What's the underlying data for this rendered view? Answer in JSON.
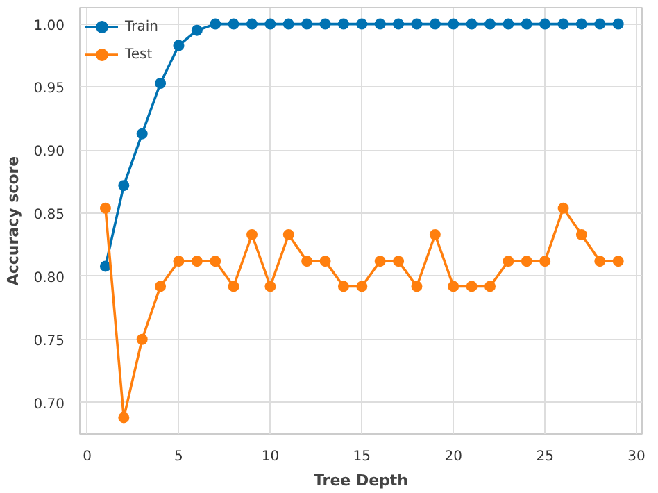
{
  "chart_data": {
    "type": "line",
    "xlabel": "Tree Depth",
    "ylabel": "Accuracy score",
    "x": [
      1,
      2,
      3,
      4,
      5,
      6,
      7,
      8,
      9,
      10,
      11,
      12,
      13,
      14,
      15,
      16,
      17,
      18,
      19,
      20,
      21,
      22,
      23,
      24,
      25,
      26,
      27,
      28,
      29
    ],
    "series": [
      {
        "name": "Train",
        "color": "#0072b2",
        "values": [
          0.808,
          0.872,
          0.913,
          0.953,
          0.983,
          0.995,
          1.0,
          1.0,
          1.0,
          1.0,
          1.0,
          1.0,
          1.0,
          1.0,
          1.0,
          1.0,
          1.0,
          1.0,
          1.0,
          1.0,
          1.0,
          1.0,
          1.0,
          1.0,
          1.0,
          1.0,
          1.0,
          1.0,
          1.0
        ]
      },
      {
        "name": "Test",
        "color": "#ff7f0e",
        "values": [
          0.854,
          0.688,
          0.75,
          0.792,
          0.812,
          0.812,
          0.812,
          0.792,
          0.833,
          0.792,
          0.833,
          0.812,
          0.812,
          0.792,
          0.792,
          0.812,
          0.812,
          0.792,
          0.833,
          0.792,
          0.792,
          0.792,
          0.812,
          0.812,
          0.812,
          0.854,
          0.833,
          0.812,
          0.812
        ]
      }
    ],
    "xlim": [
      -0.4,
      30.3
    ],
    "ylim": [
      0.675,
      1.013
    ],
    "xticks": [
      0,
      5,
      10,
      15,
      20,
      25,
      30
    ],
    "yticks": [
      {
        "value": 0.7,
        "label": "0.70"
      },
      {
        "value": 0.75,
        "label": "0.75"
      },
      {
        "value": 0.8,
        "label": "0.80"
      },
      {
        "value": 0.85,
        "label": "0.85"
      },
      {
        "value": 0.9,
        "label": "0.90"
      },
      {
        "value": 0.95,
        "label": "0.95"
      },
      {
        "value": 1.0,
        "label": "1.00"
      }
    ],
    "grid": true,
    "legend": "top left",
    "marker": "circle",
    "line_style": "solid"
  }
}
